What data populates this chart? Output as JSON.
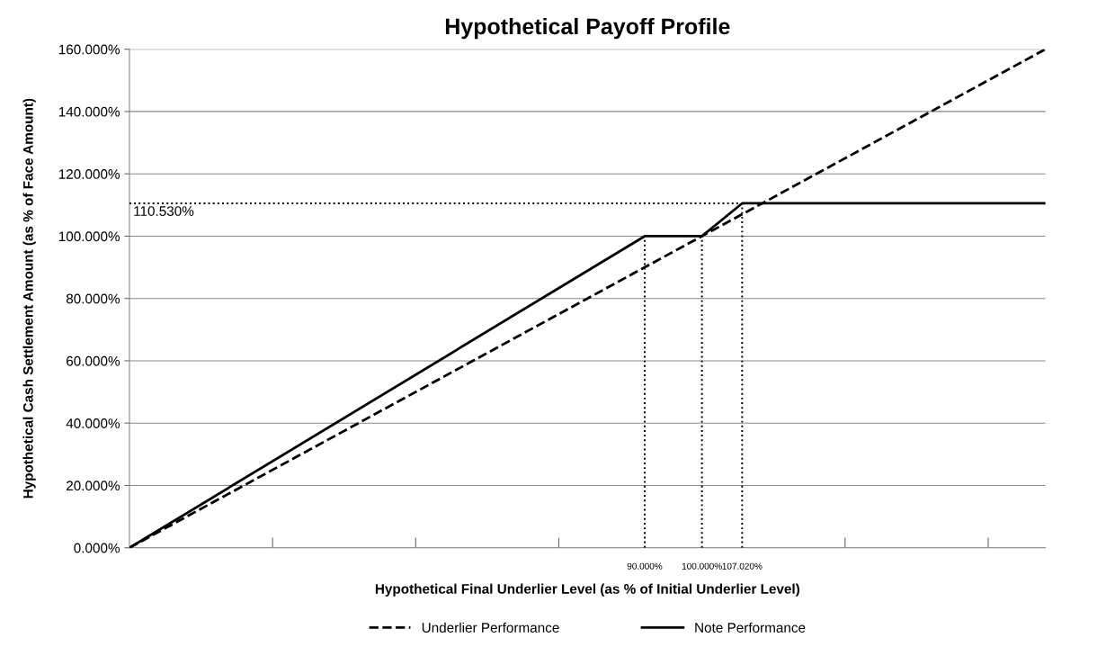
{
  "chart_data": {
    "type": "line",
    "title": "Hypothetical Payoff Profile",
    "xlabel": "Hypothetical Final Underlier Level (as % of Initial Underlier Level)",
    "ylabel": "Hypothetical Cash Settlement Amount (as % of Face Amount)",
    "series": [
      {
        "name": "Underlier Performance",
        "color": "#000000",
        "line_style": "dashed",
        "x": [
          0,
          160
        ],
        "values": [
          0,
          160
        ]
      },
      {
        "name": "Note Performance",
        "color": "#000000",
        "line_style": "solid",
        "x": [
          0,
          90,
          100,
          107.02,
          160
        ],
        "values": [
          0,
          100,
          100,
          110.53,
          110.53
        ]
      },
      {
        "color": "#000000",
        "line_style": "dotted",
        "x": [
          0,
          107.02
        ],
        "values": [
          110.53,
          110.53
        ]
      },
      {
        "color": "#000000",
        "line_style": "dotted",
        "x": [
          90,
          90
        ],
        "values": [
          0,
          100
        ]
      },
      {
        "color": "#000000",
        "line_style": "dotted",
        "x": [
          100,
          100
        ],
        "values": [
          0,
          100
        ]
      },
      {
        "color": "#000000",
        "line_style": "dotted",
        "x": [
          107.02,
          107.02
        ],
        "values": [
          0,
          110.53
        ]
      }
    ],
    "annotations": [
      {
        "text": "110.530%",
        "x": 0,
        "y": 110.53
      }
    ],
    "xlim": [
      0,
      160
    ],
    "xticks": [
      {
        "value": 25,
        "label": null
      },
      {
        "value": 50,
        "label": null
      },
      {
        "value": 75,
        "label": null
      },
      {
        "value": 90,
        "label": "90.000%"
      },
      {
        "value": 100,
        "label": "100.000%"
      },
      {
        "value": 107.02,
        "label": "107.020%"
      },
      {
        "value": 125,
        "label": null
      },
      {
        "value": 150,
        "label": null
      }
    ],
    "ylim": [
      0,
      160
    ],
    "yticks": [
      {
        "value": 0,
        "label": "0.000%"
      },
      {
        "value": 20,
        "label": "20.000%"
      },
      {
        "value": 40,
        "label": "40.000%"
      },
      {
        "value": 60,
        "label": "60.000%"
      },
      {
        "value": 80,
        "label": "80.000%"
      },
      {
        "value": 100,
        "label": "100.000%"
      },
      {
        "value": 120,
        "label": "120.000%"
      },
      {
        "value": 140,
        "label": "140.000%"
      },
      {
        "value": 160,
        "label": "160.000%"
      }
    ],
    "grid": "y",
    "legend": "bottom",
    "marker": "none"
  }
}
